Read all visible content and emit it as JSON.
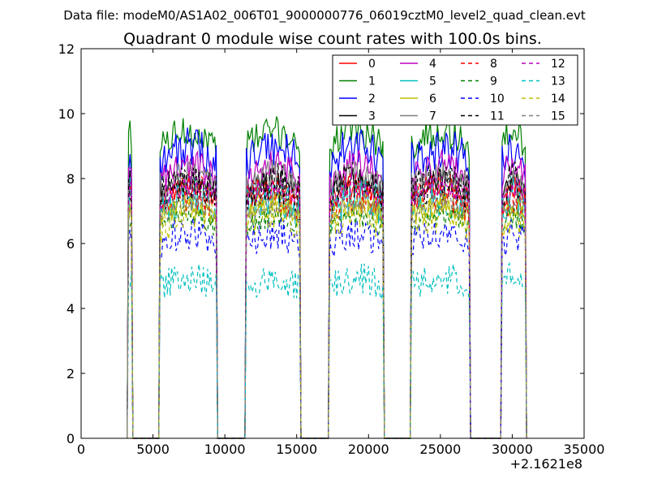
{
  "figure": {
    "suptitle": "Data file: modeM0/AS1A02_006T01_9000000776_06019cztM0_level2_quad_clean.evt"
  },
  "chart_data": {
    "type": "line",
    "title": "Quadrant 0 module wise count rates with 100.0s bins.",
    "xlabel": "",
    "ylabel": "",
    "x_offset_label": "+2.1621e8",
    "xlim": [
      0,
      35000
    ],
    "ylim": [
      0,
      12
    ],
    "xticks": [
      0,
      5000,
      10000,
      15000,
      20000,
      25000,
      30000,
      35000
    ],
    "xtick_labels": [
      "0",
      "5000",
      "10000",
      "15000",
      "20000",
      "25000",
      "30000",
      "35000"
    ],
    "yticks": [
      0,
      2,
      4,
      6,
      8,
      10,
      12
    ],
    "ytick_labels": [
      "0",
      "2",
      "4",
      "6",
      "8",
      "10",
      "12"
    ],
    "grid": false,
    "legend_position": "top-right",
    "active_segments": [
      {
        "start": 3300,
        "end": 3500
      },
      {
        "start": 5500,
        "end": 9400
      },
      {
        "start": 11500,
        "end": 15200
      },
      {
        "start": 17300,
        "end": 21000
      },
      {
        "start": 23000,
        "end": 27000
      },
      {
        "start": 29300,
        "end": 30900
      }
    ],
    "series": [
      {
        "name": "0",
        "color": "#ff0000",
        "style": "solid",
        "level": 7.3
      },
      {
        "name": "1",
        "color": "#008000",
        "style": "solid",
        "level": 9.0
      },
      {
        "name": "2",
        "color": "#0000ff",
        "style": "solid",
        "level": 8.5
      },
      {
        "name": "3",
        "color": "#000000",
        "style": "solid",
        "level": 7.6
      },
      {
        "name": "4",
        "color": "#bf00bf",
        "style": "solid",
        "level": 8.0
      },
      {
        "name": "5",
        "color": "#00bfbf",
        "style": "solid",
        "level": 7.1
      },
      {
        "name": "6",
        "color": "#bfbf00",
        "style": "solid",
        "level": 6.8
      },
      {
        "name": "7",
        "color": "#808080",
        "style": "solid",
        "level": 7.7
      },
      {
        "name": "8",
        "color": "#ff0000",
        "style": "dashed",
        "level": 7.2
      },
      {
        "name": "9",
        "color": "#008000",
        "style": "dashed",
        "level": 6.5
      },
      {
        "name": "10",
        "color": "#0000ff",
        "style": "dashed",
        "level": 6.0
      },
      {
        "name": "11",
        "color": "#000000",
        "style": "dashed",
        "level": 7.5
      },
      {
        "name": "12",
        "color": "#bf00bf",
        "style": "dashed",
        "level": 7.4
      },
      {
        "name": "13",
        "color": "#00bfbf",
        "style": "dashed",
        "level": 4.7
      },
      {
        "name": "14",
        "color": "#bfbf00",
        "style": "dashed",
        "level": 6.6
      },
      {
        "name": "15",
        "color": "#808080",
        "style": "dashed",
        "level": 6.9
      }
    ]
  }
}
